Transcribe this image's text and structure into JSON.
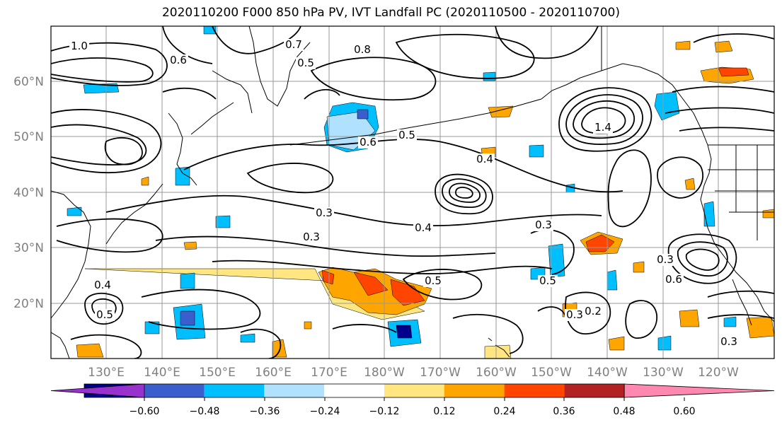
{
  "title": "2020110200 F000 850 hPa PV, IVT Landfall PC (2020110500 - 2020110700)",
  "lat_labels": [
    "60°N",
    "50°N",
    "40°N",
    "30°N",
    "20°N"
  ],
  "lon_labels": [
    "130°E",
    "140°E",
    "150°E",
    "160°E",
    "170°E",
    "180°W",
    "170°W",
    "160°W",
    "150°W",
    "140°W",
    "130°W",
    "120°W"
  ],
  "contour_labels": [
    "1.0",
    "0.6",
    "0.7",
    "0.5",
    "0.8",
    "0.3",
    "0.4",
    "1.4",
    "0.6",
    "0.5",
    "0.4",
    "0.3",
    "0.3",
    "0.4",
    "0.5",
    "0.5",
    "0.3",
    "0.6",
    "0.5",
    "0.3",
    "0.2",
    "0.3"
  ],
  "colorbar": {
    "ticks": [
      "−0.60",
      "−0.48",
      "−0.36",
      "−0.24",
      "−0.12",
      "0.12",
      "0.24",
      "0.36",
      "0.48",
      "0.60"
    ],
    "colors": [
      "#9932cc",
      "#00008b",
      "#3a5fcd",
      "#00bfff",
      "#b0e2ff",
      "#ffffff",
      "#ffe680",
      "#ffa500",
      "#ff4500",
      "#b22222",
      "#ff88b0"
    ],
    "extend": "both"
  },
  "fill_colors": {
    "pos1": "#ffe680",
    "pos2": "#ffa500",
    "pos3": "#ff4500",
    "neg1": "#b0e2ff",
    "neg2": "#00bfff",
    "neg3": "#3a5fcd",
    "neg4": "#00008b"
  }
}
